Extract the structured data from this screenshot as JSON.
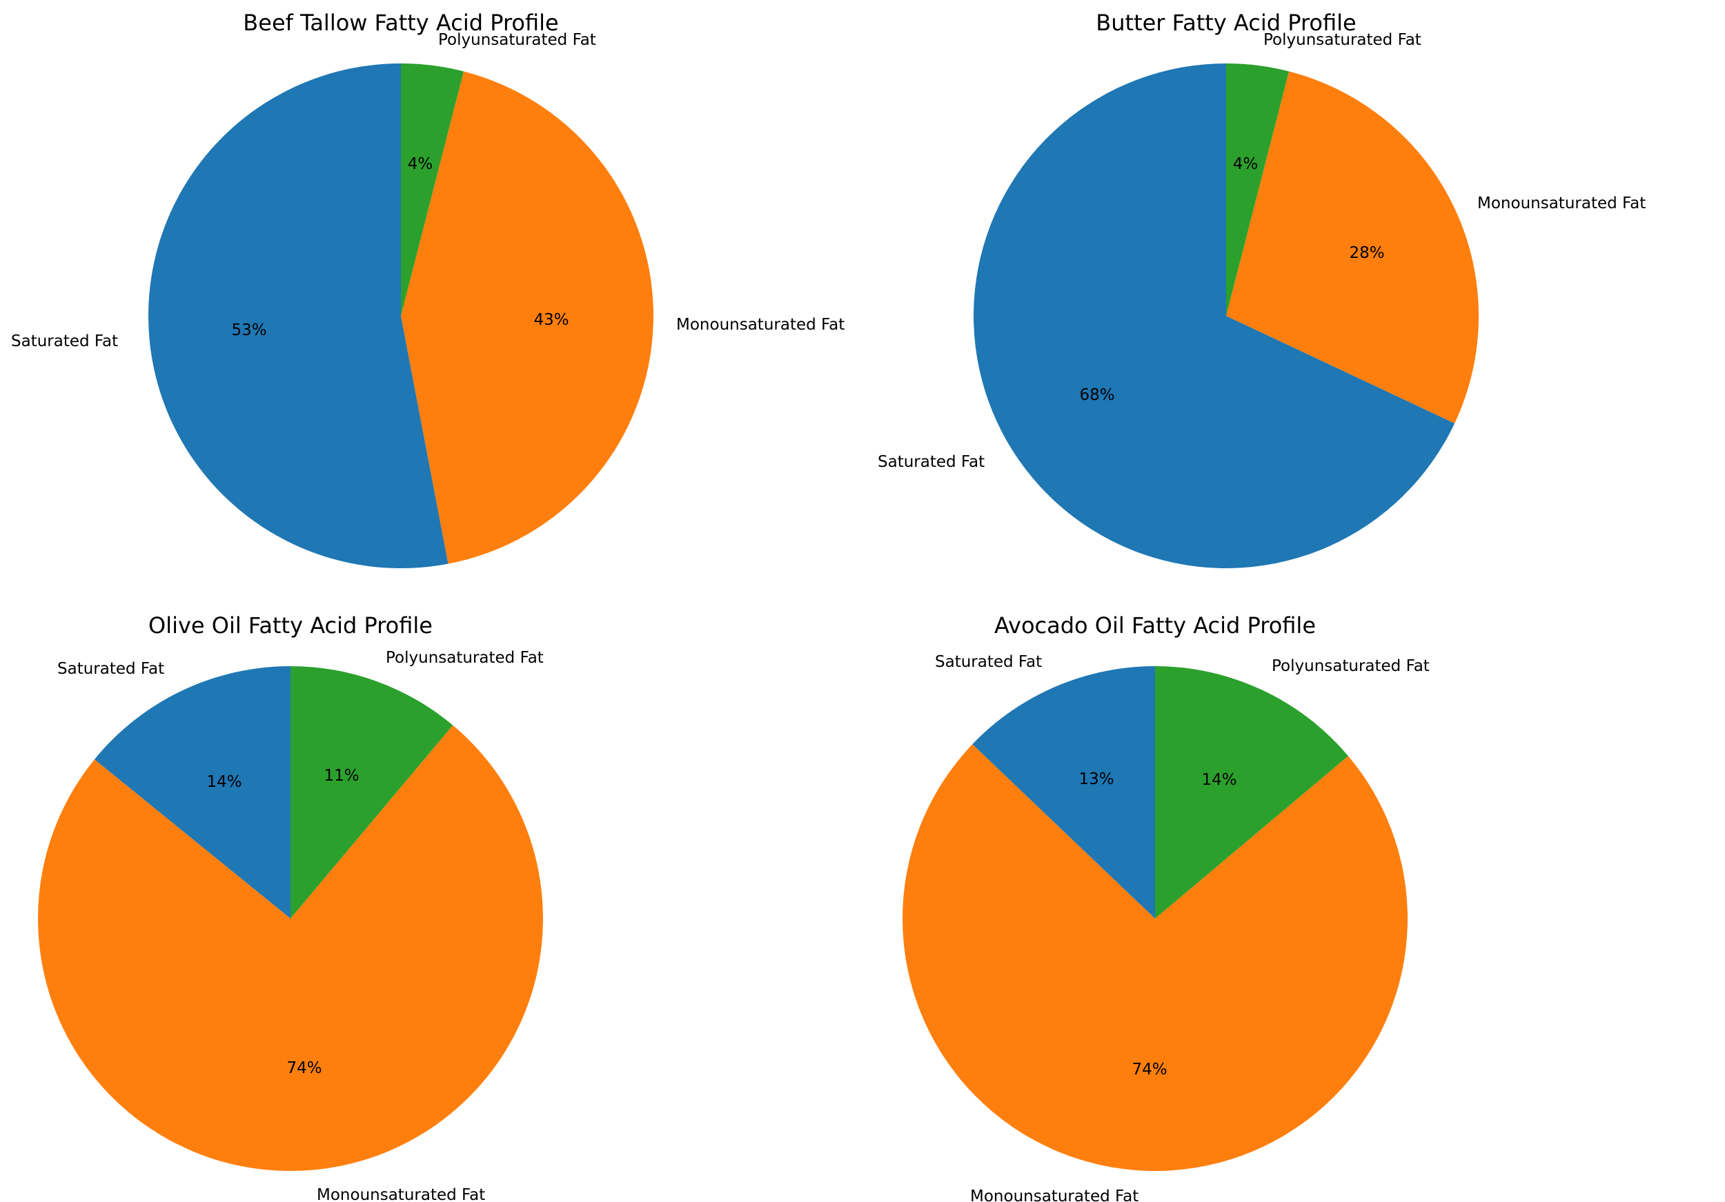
{
  "colors": {
    "Saturated Fat": "#1f77b4",
    "Monounsaturated Fat": "#ff7f0e",
    "Polyunsaturated Fat": "#2ca02c"
  },
  "chart_data": [
    {
      "type": "pie",
      "title": "Beef Tallow Fatty Acid Profile",
      "labels": [
        "Saturated Fat",
        "Monounsaturated Fat",
        "Polyunsaturated Fat"
      ],
      "values": [
        53,
        43,
        4
      ],
      "pct_labels": [
        "53%",
        "43%",
        "4%"
      ],
      "start_angle_deg": 90,
      "direction": "counterclockwise"
    },
    {
      "type": "pie",
      "title": "Butter Fatty Acid Profile",
      "labels": [
        "Saturated Fat",
        "Monounsaturated Fat",
        "Polyunsaturated Fat"
      ],
      "values": [
        68,
        28,
        4
      ],
      "pct_labels": [
        "68%",
        "28%",
        "4%"
      ],
      "start_angle_deg": 90,
      "direction": "counterclockwise"
    },
    {
      "type": "pie",
      "title": "Olive Oil Fatty Acid Profile",
      "labels": [
        "Saturated Fat",
        "Monounsaturated Fat",
        "Polyunsaturated Fat"
      ],
      "values": [
        14,
        74,
        11
      ],
      "pct_labels": [
        "14%",
        "74%",
        "11%"
      ],
      "start_angle_deg": 90,
      "direction": "counterclockwise"
    },
    {
      "type": "pie",
      "title": "Avocado Oil Fatty Acid Profile",
      "labels": [
        "Saturated Fat",
        "Monounsaturated Fat",
        "Polyunsaturated Fat"
      ],
      "values": [
        13,
        74,
        14
      ],
      "pct_labels": [
        "13%",
        "74%",
        "14%"
      ],
      "start_angle_deg": 90,
      "direction": "counterclockwise"
    }
  ]
}
